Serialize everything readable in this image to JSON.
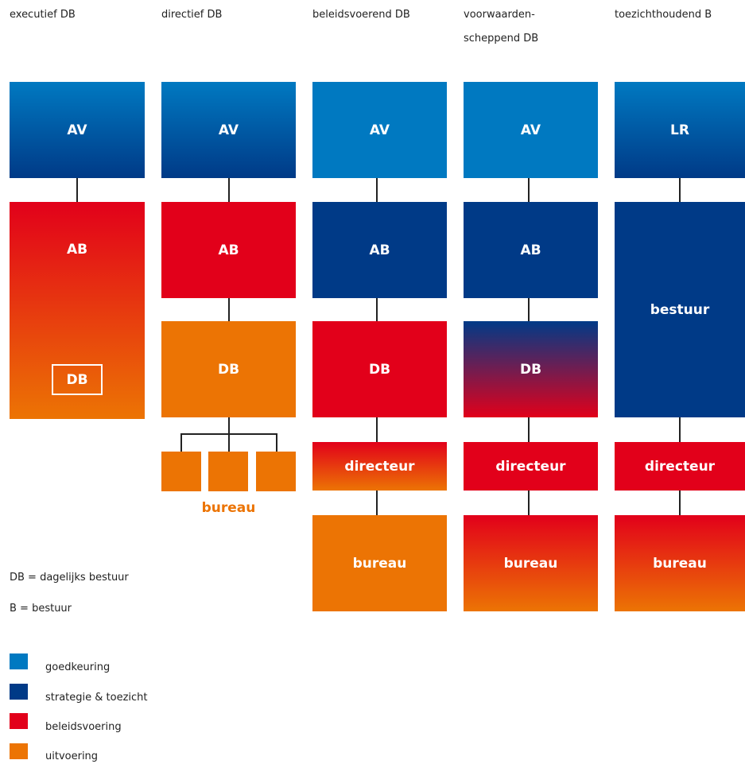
{
  "columns": [
    {
      "header": "executief DB",
      "boxes": [
        {
          "label": "AV"
        },
        {
          "label": "AB"
        },
        {
          "label": "DB"
        }
      ]
    },
    {
      "header": "directief DB",
      "boxes": [
        {
          "label": "AV"
        },
        {
          "label": "AB"
        },
        {
          "label": "DB"
        }
      ],
      "sublabel": "bureau"
    },
    {
      "header": "beleidsvoerend DB",
      "boxes": [
        {
          "label": "AV"
        },
        {
          "label": "AB"
        },
        {
          "label": "DB"
        },
        {
          "label": "directeur"
        },
        {
          "label": "bureau"
        }
      ]
    },
    {
      "header": "voorwaarden-\nscheppend DB",
      "boxes": [
        {
          "label": "AV"
        },
        {
          "label": "AB"
        },
        {
          "label": "DB"
        },
        {
          "label": "directeur"
        },
        {
          "label": "bureau"
        }
      ]
    },
    {
      "header": "toezichthoudend B",
      "boxes": [
        {
          "label": "LR"
        },
        {
          "label": "bestuur"
        },
        {
          "label": "directeur"
        },
        {
          "label": "bureau"
        }
      ]
    }
  ],
  "notes": [
    "DB = dagelijks bestuur",
    "B = bestuur"
  ],
  "legend": [
    {
      "label": "goedkeuring"
    },
    {
      "label": "strategie & toezicht"
    },
    {
      "label": "beleidsvoering"
    },
    {
      "label": "uitvoering"
    }
  ]
}
